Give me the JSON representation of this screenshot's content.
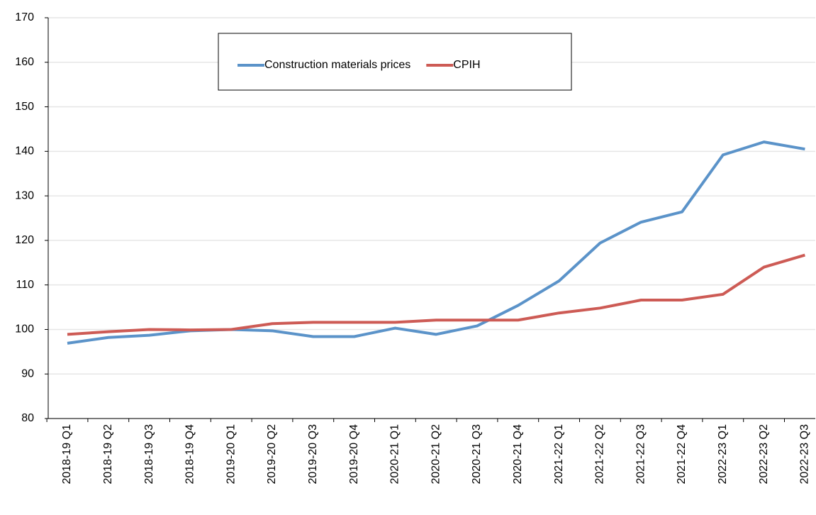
{
  "chart_data": {
    "type": "line",
    "categories": [
      "2018-19 Q1",
      "2018-19 Q2",
      "2018-19 Q3",
      "2018-19 Q4",
      "2019-20 Q1",
      "2019-20 Q2",
      "2019-20 Q3",
      "2019-20 Q4",
      "2020-21 Q1",
      "2020-21 Q2",
      "2020-21 Q3",
      "2020-21 Q4",
      "2021-22 Q1",
      "2021-22 Q2",
      "2021-22 Q3",
      "2021-22 Q4",
      "2022-23 Q1",
      "2022-23 Q2",
      "2022-23 Q3"
    ],
    "series": [
      {
        "name": "Construction materials prices",
        "color": "#5b93c9",
        "values": [
          96.9,
          98.2,
          98.7,
          99.7,
          100,
          99.7,
          98.4,
          98.4,
          100.3,
          98.9,
          100.8,
          105.4,
          110.9,
          119.4,
          124.1,
          126.4,
          139.2,
          142.1,
          140.5
        ]
      },
      {
        "name": "CPIH",
        "color": "#cd5b55",
        "values": [
          98.9,
          99.5,
          100,
          99.9,
          100,
          101.3,
          101.6,
          101.6,
          101.6,
          102.1,
          102.1,
          102.1,
          103.7,
          104.8,
          106.6,
          106.6,
          107.9,
          114,
          116.7
        ]
      }
    ],
    "ylim": [
      80,
      170
    ],
    "yticks": [
      80,
      90,
      100,
      110,
      120,
      130,
      140,
      150,
      160,
      170
    ],
    "grid": true,
    "legend": "top"
  }
}
